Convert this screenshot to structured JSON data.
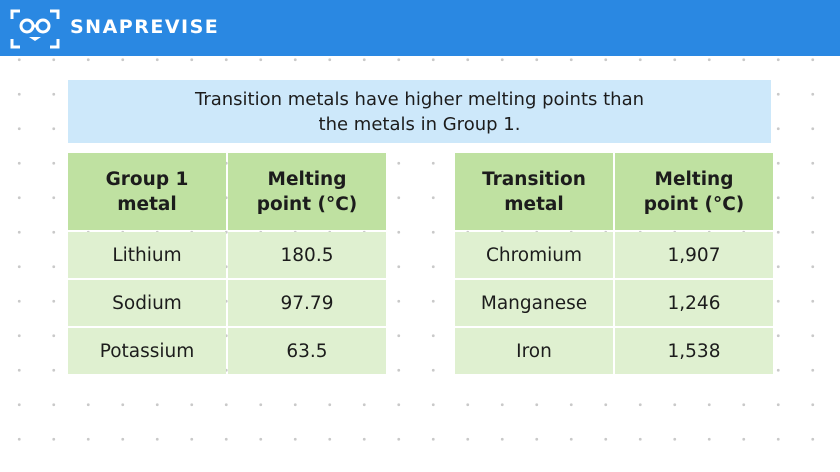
{
  "header": {
    "brand": "SNAPREVISE"
  },
  "banner": {
    "lines": [
      "Transition metals have higher melting points than",
      "the metals in Group 1."
    ]
  },
  "tables": [
    {
      "headers": [
        "Group 1 metal",
        "Melting point (°C)"
      ],
      "rows": [
        [
          "Lithium",
          "180.5"
        ],
        [
          "Sodium",
          "97.79"
        ],
        [
          "Potassium",
          "63.5"
        ]
      ]
    },
    {
      "headers": [
        "Transition metal",
        "Melting point (°C)"
      ],
      "rows": [
        [
          "Chromium",
          "1,907"
        ],
        [
          "Manganese",
          "1,246"
        ],
        [
          "Iron",
          "1,538"
        ]
      ]
    }
  ]
}
